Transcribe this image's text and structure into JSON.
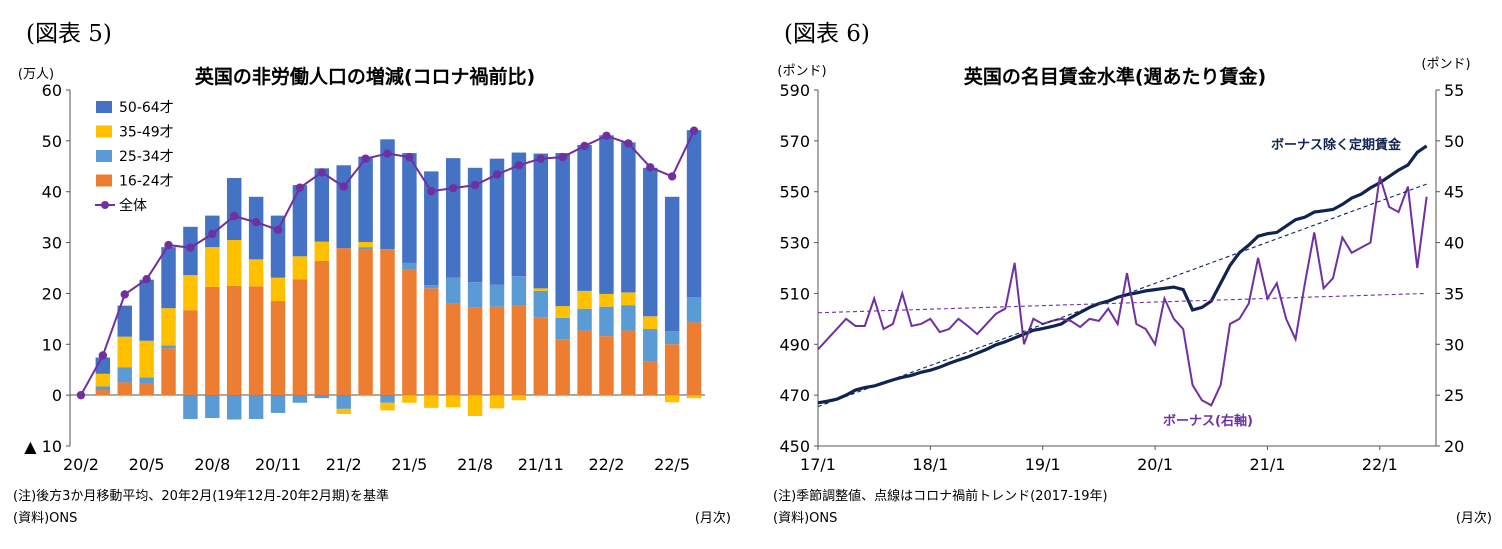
{
  "left": {
    "fig_label": "(図表 5)",
    "note": "(注)後方3か月移動平均、20年2月(19年12月-20年2月期)を基準",
    "source": "(資料)ONS",
    "xunit": "(月次)",
    "chart_data": {
      "type": "bar",
      "stacked": true,
      "title": "英国の非労働人口の増減(コロナ禍前比)",
      "ylabel": "(万人)",
      "ylim": [
        -10,
        60
      ],
      "yticks": [
        "▲ 10",
        "0",
        "10",
        "20",
        "30",
        "40",
        "50",
        "60"
      ],
      "grid": false,
      "legend_position": "top-left",
      "xtick_labels": [
        "20/2",
        "20/5",
        "20/8",
        "20/11",
        "21/2",
        "21/5",
        "21/8",
        "21/11",
        "22/2",
        "22/5"
      ],
      "categories": [
        "20/2",
        "20/3",
        "20/4",
        "20/5",
        "20/6",
        "20/7",
        "20/8",
        "20/9",
        "20/10",
        "20/11",
        "20/12",
        "21/1",
        "21/2",
        "21/3",
        "21/4",
        "21/5",
        "21/6",
        "21/7",
        "21/8",
        "21/9",
        "21/10",
        "21/11",
        "21/12",
        "22/1",
        "22/2",
        "22/3",
        "22/4",
        "22/5",
        "22/6"
      ],
      "series": [
        {
          "name": "50-64才",
          "color": "#4472C4",
          "values": [
            0,
            3.2,
            6.1,
            12.0,
            12.0,
            9.5,
            6.2,
            12.2,
            12.3,
            12.2,
            14.0,
            14.4,
            16.3,
            16.8,
            21.6,
            21.6,
            22.4,
            23.5,
            22.5,
            24.8,
            24.3,
            26.5,
            30.1,
            28.7,
            31.2,
            29.5,
            29.2,
            26.4,
            32.8
          ]
        },
        {
          "name": "35-49才",
          "color": "#FFC000",
          "values": [
            0,
            2.5,
            6.0,
            7.2,
            7.3,
            6.9,
            7.8,
            9.0,
            5.3,
            4.6,
            4.5,
            3.8,
            -1.0,
            1.0,
            -1.5,
            -1.5,
            -2.5,
            -2.4,
            -4.1,
            -2.6,
            -1.0,
            0.5,
            2.3,
            3.5,
            2.5,
            2.5,
            2.5,
            -1.4,
            -0.6
          ]
        },
        {
          "name": "25-34才",
          "color": "#5B9BD5",
          "values": [
            0,
            0.7,
            3.0,
            1.2,
            0.6,
            -4.7,
            -4.5,
            -4.8,
            -4.7,
            -3.5,
            -1.5,
            -0.6,
            -2.7,
            0.5,
            -1.5,
            1.2,
            0.6,
            5.0,
            5.0,
            4.3,
            5.8,
            5.2,
            4.2,
            4.3,
            5.8,
            5.0,
            6.3,
            2.6,
            5.0
          ]
        },
        {
          "name": "16-24才",
          "color": "#ED7D31",
          "values": [
            0,
            1.0,
            2.5,
            2.3,
            9.2,
            16.7,
            21.3,
            21.5,
            21.4,
            18.5,
            22.8,
            26.4,
            28.9,
            28.6,
            28.7,
            24.8,
            21.0,
            18.1,
            17.2,
            17.4,
            17.6,
            15.3,
            11.0,
            12.7,
            11.6,
            12.7,
            6.7,
            10.0,
            14.3
          ]
        },
        {
          "name": "全体",
          "type": "line",
          "color": "#7030A0",
          "values": [
            0,
            7.8,
            19.8,
            22.8,
            29.5,
            29.0,
            31.7,
            35.2,
            34.0,
            32.5,
            40.8,
            43.8,
            41.0,
            46.5,
            47.5,
            46.8,
            40.1,
            40.7,
            41.3,
            43.4,
            45.2,
            46.5,
            46.8,
            49.0,
            51.0,
            49.5,
            44.8,
            43.0,
            52.0
          ]
        }
      ]
    }
  },
  "right": {
    "fig_label": "(図表 6)",
    "note": "(注)季節調整値、点線はコロナ禍前トレンド(2017-19年)",
    "source": "(資料)ONS",
    "xunit": "(月次)",
    "chart_data": {
      "type": "line",
      "title": "英国の名目賃金水準(週あたり賃金)",
      "ylabel_left": "(ポンド)",
      "ylabel_right": "(ポンド)",
      "ylim_left": [
        450,
        590
      ],
      "ylim_right": [
        20,
        55
      ],
      "yticks_left": [
        450,
        470,
        490,
        510,
        530,
        550,
        570,
        590
      ],
      "yticks_right": [
        20,
        25,
        30,
        35,
        40,
        45,
        50,
        55
      ],
      "xtick_labels": [
        "17/1",
        "18/1",
        "19/1",
        "20/1",
        "21/1",
        "22/1"
      ],
      "x_range": [
        "2017-01",
        "2022-06"
      ],
      "grid": false,
      "annotations": [
        "ボーナス除く定期賃金",
        "ボーナス(右軸)"
      ],
      "series": [
        {
          "name": "ボーナス除く定期賃金",
          "axis": "left",
          "color": "#0F2451",
          "x": [
            "2017-01",
            "2017-02",
            "2017-03",
            "2017-04",
            "2017-05",
            "2017-06",
            "2017-07",
            "2017-08",
            "2017-09",
            "2017-10",
            "2017-11",
            "2017-12",
            "2018-01",
            "2018-02",
            "2018-03",
            "2018-04",
            "2018-05",
            "2018-06",
            "2018-07",
            "2018-08",
            "2018-09",
            "2018-10",
            "2018-11",
            "2018-12",
            "2019-01",
            "2019-02",
            "2019-03",
            "2019-04",
            "2019-05",
            "2019-06",
            "2019-07",
            "2019-08",
            "2019-09",
            "2019-10",
            "2019-11",
            "2019-12",
            "2020-01",
            "2020-02",
            "2020-03",
            "2020-04",
            "2020-05",
            "2020-06",
            "2020-07",
            "2020-08",
            "2020-09",
            "2020-10",
            "2020-11",
            "2020-12",
            "2021-01",
            "2021-02",
            "2021-03",
            "2021-04",
            "2021-05",
            "2021-06",
            "2021-07",
            "2021-08",
            "2021-09",
            "2021-10",
            "2021-11",
            "2021-12",
            "2022-01",
            "2022-02",
            "2022-03",
            "2022-04",
            "2022-05",
            "2022-06"
          ],
          "values": [
            467.0,
            467.6,
            468.4,
            470.0,
            472.0,
            473.0,
            473.6,
            474.8,
            476.0,
            477.0,
            477.8,
            479.0,
            479.8,
            481.0,
            482.5,
            483.8,
            485.0,
            486.5,
            488.0,
            489.8,
            491.0,
            492.5,
            494.0,
            495.5,
            496.2,
            497.0,
            498.0,
            500.5,
            502.5,
            504.5,
            506.0,
            507.0,
            508.5,
            509.5,
            510.2,
            511.0,
            511.5,
            512.0,
            512.5,
            511.5,
            503.5,
            504.5,
            507.0,
            514.0,
            521.0,
            526.0,
            529.0,
            532.5,
            533.5,
            534.0,
            536.5,
            539.0,
            540.0,
            542.0,
            542.5,
            543.0,
            545.0,
            547.5,
            549.0,
            551.5,
            553.5,
            556.0,
            558.5,
            560.5,
            565.5,
            568.0
          ]
        },
        {
          "name": "ボーナス(右軸)",
          "axis": "right",
          "color": "#7030A0",
          "x": [
            "2017-01",
            "2017-02",
            "2017-03",
            "2017-04",
            "2017-05",
            "2017-06",
            "2017-07",
            "2017-08",
            "2017-09",
            "2017-10",
            "2017-11",
            "2017-12",
            "2018-01",
            "2018-02",
            "2018-03",
            "2018-04",
            "2018-05",
            "2018-06",
            "2018-07",
            "2018-08",
            "2018-09",
            "2018-10",
            "2018-11",
            "2018-12",
            "2019-01",
            "2019-02",
            "2019-03",
            "2019-04",
            "2019-05",
            "2019-06",
            "2019-07",
            "2019-08",
            "2019-09",
            "2019-10",
            "2019-11",
            "2019-12",
            "2020-01",
            "2020-02",
            "2020-03",
            "2020-04",
            "2020-05",
            "2020-06",
            "2020-07",
            "2020-08",
            "2020-09",
            "2020-10",
            "2020-11",
            "2020-12",
            "2021-01",
            "2021-02",
            "2021-03",
            "2021-04",
            "2021-05",
            "2021-06",
            "2021-07",
            "2021-08",
            "2021-09",
            "2021-10",
            "2021-11",
            "2021-12",
            "2022-01",
            "2022-02",
            "2022-03",
            "2022-04",
            "2022-05",
            "2022-06"
          ],
          "values": [
            29.5,
            30.5,
            31.5,
            32.5,
            31.8,
            31.8,
            34.5,
            31.5,
            32.0,
            35.0,
            31.8,
            32.0,
            32.5,
            31.2,
            31.5,
            32.5,
            31.8,
            31.0,
            32.0,
            33.0,
            33.5,
            38.0,
            30.0,
            32.5,
            32.0,
            32.3,
            32.5,
            32.3,
            31.7,
            32.5,
            32.3,
            33.5,
            32.0,
            37.0,
            32.0,
            31.5,
            30.0,
            34.5,
            32.5,
            31.5,
            26.0,
            24.5,
            24.0,
            26.0,
            32.0,
            32.5,
            34.0,
            38.5,
            34.5,
            36.0,
            32.5,
            30.5,
            36.0,
            41.0,
            35.5,
            36.5,
            40.5,
            39.0,
            39.5,
            40.0,
            46.5,
            43.5,
            43.0,
            45.5,
            37.5,
            44.5
          ]
        },
        {
          "name": "トレンド(定期賃金)",
          "axis": "left",
          "style": "dashed",
          "color": "#0F2451",
          "x": [
            "2017-01",
            "2022-06"
          ],
          "values": [
            465.5,
            553.0
          ]
        },
        {
          "name": "トレンド(ボーナス)",
          "axis": "right",
          "style": "dashed",
          "color": "#7030A0",
          "x": [
            "2017-01",
            "2022-06"
          ],
          "values": [
            33.1,
            35.0
          ]
        }
      ]
    }
  }
}
